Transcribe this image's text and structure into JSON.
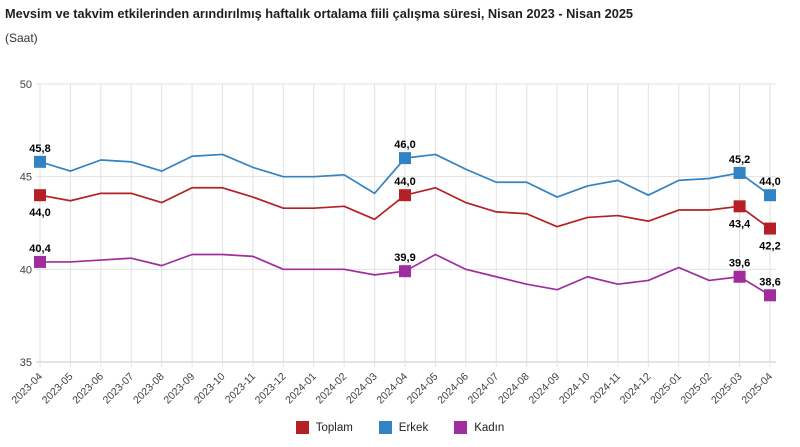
{
  "header": {
    "title": "Mevsim ve takvim etkilerinden arındırılmış haftalık ortalama fiili çalışma süresi, Nisan 2023 - Nisan 2025",
    "subtitle": "(Saat)"
  },
  "chart_data": {
    "type": "line",
    "title": "Mevsim ve takvim etkilerinden arındırılmış haftalık ortalama fiili çalışma süresi, Nisan 2023 - Nisan 2025",
    "subtitle": "(Saat)",
    "categories": [
      "2023-04",
      "2023-05",
      "2023-06",
      "2023-07",
      "2023-08",
      "2023-09",
      "2023-10",
      "2023-11",
      "2023-12",
      "2024-01",
      "2024-02",
      "2024-03",
      "2024-04",
      "2024-05",
      "2024-06",
      "2024-07",
      "2024-08",
      "2024-09",
      "2024-10",
      "2024-11",
      "2024-12",
      "2025-01",
      "2025-02",
      "2025-03",
      "2025-04"
    ],
    "series": [
      {
        "name": "Toplam",
        "color": "#B42025",
        "values": [
          44.0,
          43.7,
          44.1,
          44.1,
          43.6,
          44.4,
          44.4,
          43.9,
          43.3,
          43.3,
          43.4,
          42.7,
          44.0,
          44.4,
          43.6,
          43.1,
          43.0,
          42.3,
          42.8,
          42.9,
          42.6,
          43.2,
          43.2,
          43.4,
          42.2
        ],
        "labeled_points": [
          {
            "index": 0,
            "label": "44,0",
            "placement": "below"
          },
          {
            "index": 12,
            "label": "44,0",
            "placement": "above"
          },
          {
            "index": 23,
            "label": "43,4",
            "placement": "below"
          },
          {
            "index": 24,
            "label": "42,2",
            "placement": "below"
          }
        ]
      },
      {
        "name": "Erkek",
        "color": "#3183C4",
        "values": [
          45.8,
          45.3,
          45.9,
          45.8,
          45.3,
          46.1,
          46.2,
          45.5,
          45.0,
          45.0,
          45.1,
          44.1,
          46.0,
          46.2,
          45.4,
          44.7,
          44.7,
          43.9,
          44.5,
          44.8,
          44.0,
          44.8,
          44.9,
          45.2,
          44.0
        ],
        "labeled_points": [
          {
            "index": 0,
            "label": "45,8",
            "placement": "above"
          },
          {
            "index": 12,
            "label": "46,0",
            "placement": "above"
          },
          {
            "index": 23,
            "label": "45,2",
            "placement": "above"
          },
          {
            "index": 24,
            "label": "44,0",
            "placement": "above"
          }
        ]
      },
      {
        "name": "Kadın",
        "color": "#A02C9E",
        "values": [
          40.4,
          40.4,
          40.5,
          40.6,
          40.2,
          40.8,
          40.8,
          40.7,
          40.0,
          40.0,
          40.0,
          39.7,
          39.9,
          40.8,
          40.0,
          39.6,
          39.2,
          38.9,
          39.6,
          39.2,
          39.4,
          40.1,
          39.4,
          39.6,
          38.6
        ],
        "labeled_points": [
          {
            "index": 0,
            "label": "40,4",
            "placement": "above"
          },
          {
            "index": 12,
            "label": "39,9",
            "placement": "above"
          },
          {
            "index": 23,
            "label": "39,6",
            "placement": "above"
          },
          {
            "index": 24,
            "label": "38,6",
            "placement": "above"
          }
        ]
      }
    ],
    "ylim": [
      35,
      50
    ],
    "yticks": [
      50,
      45,
      40,
      35
    ],
    "xlabel": "",
    "ylabel": "(Saat)",
    "grid": true,
    "legend_position": "bottom",
    "colors": {
      "grid": "#e2e2e2",
      "axis": "#c9c9c9",
      "tick_text": "#404040",
      "point_label_text": "#000000"
    }
  },
  "legend": {
    "items": [
      {
        "label": "Toplam",
        "color": "#B42025"
      },
      {
        "label": "Erkek",
        "color": "#3183C4"
      },
      {
        "label": "Kadın",
        "color": "#A02C9E"
      }
    ]
  }
}
